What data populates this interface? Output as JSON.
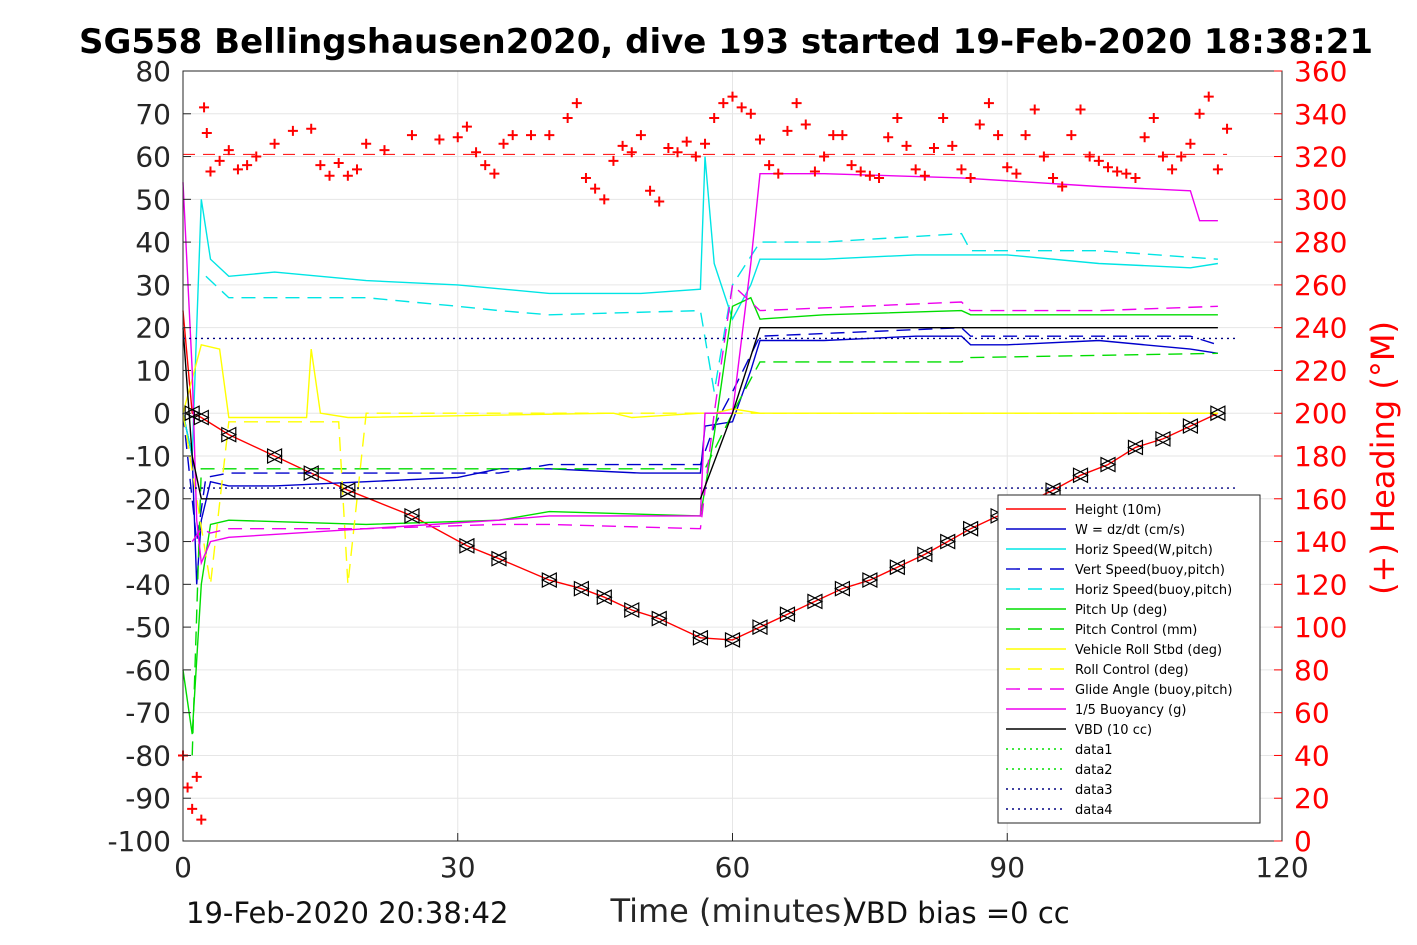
{
  "footer": {
    "timestamp": "19-Feb-2020 20:38:42",
    "vbd_bias": "VBD bias =0 cc"
  },
  "chart_data": {
    "type": "line",
    "title": "SG558 Bellingshausen2020, dive 193 started 19-Feb-2020 18:38:21",
    "xlabel": "Time (minutes)",
    "ylabel": "",
    "ylabel_right": "(+) Heading (°M)",
    "xlim": [
      0,
      120
    ],
    "ylim": [
      -100,
      80
    ],
    "ylim_right": [
      0,
      360
    ],
    "xticks": [
      "0",
      "30",
      "60",
      "90",
      "120"
    ],
    "yticks": [
      "80",
      "70",
      "60",
      "50",
      "40",
      "30",
      "20",
      "10",
      "0",
      "-10",
      "-20",
      "-30",
      "-40",
      "-50",
      "-60",
      "-70",
      "-80",
      "-90",
      "-100"
    ],
    "yticks_right": [
      "360",
      "340",
      "320",
      "300",
      "280",
      "260",
      "240",
      "220",
      "200",
      "180",
      "160",
      "140",
      "120",
      "100",
      "80",
      "60",
      "40",
      "20",
      "0"
    ],
    "grid": true,
    "legend_position": "bottom-right",
    "series": [
      {
        "name": "Height (10m)",
        "color": "#ff0000",
        "style": "solid",
        "x": [
          0,
          1,
          2,
          5,
          10,
          14,
          18,
          25,
          31,
          34.5,
          40,
          43.5,
          46,
          49,
          52,
          56.5,
          60,
          63,
          66,
          69,
          72,
          75,
          78,
          81,
          83.5,
          86,
          89,
          92,
          95,
          98,
          101,
          104,
          107,
          110,
          113
        ],
        "values": [
          24,
          0,
          -1,
          -5,
          -10,
          -14,
          -18,
          -24,
          -31,
          -34,
          -39,
          -41,
          -43,
          -46,
          -48,
          -52.5,
          -53,
          -50,
          -47,
          -44,
          -41,
          -39,
          -36,
          -33,
          -30,
          -27,
          -24,
          -21,
          -18,
          -14.5,
          -12,
          -8,
          -6,
          -3,
          0
        ]
      },
      {
        "name": "W = dz/dt (cm/s)",
        "color": "#0000cc",
        "style": "solid",
        "x": [
          0,
          1,
          1.5,
          2,
          3,
          5,
          10,
          20,
          30,
          34.5,
          40,
          50,
          56.5,
          57,
          60,
          62,
          63,
          70,
          80,
          85,
          86,
          90,
          100,
          110,
          113
        ],
        "values": [
          0,
          -10,
          -40,
          -25,
          -16,
          -17,
          -17,
          -16,
          -15,
          -13,
          -13,
          -14,
          -14,
          -3,
          -2,
          10,
          17,
          17,
          18,
          18,
          16,
          16,
          17,
          15,
          14
        ]
      },
      {
        "name": "Horiz Speed(W,pitch)",
        "color": "#00e5e5",
        "style": "solid",
        "x": [
          0,
          1,
          1.5,
          2,
          3,
          5,
          10,
          20,
          30,
          40,
          50,
          56.5,
          57,
          58,
          60,
          62,
          63,
          70,
          80,
          90,
          100,
          110,
          113
        ],
        "values": [
          0,
          -10,
          20,
          50,
          36,
          32,
          33,
          31,
          30,
          28,
          28,
          29,
          60,
          35,
          22,
          30,
          36,
          36,
          37,
          37,
          35,
          34,
          35
        ]
      },
      {
        "name": "Vert Speed(buoy,pitch)",
        "color": "#0000cc",
        "style": "dashed",
        "x": [
          0,
          1.5,
          2.5,
          5,
          20,
          34.5,
          40,
          56.5,
          58,
          60,
          63,
          85,
          86,
          110,
          113
        ],
        "values": [
          0,
          -30,
          -15,
          -14,
          -14,
          -14,
          -12,
          -12,
          -3,
          5,
          18,
          20,
          18,
          18,
          16
        ]
      },
      {
        "name": "Horiz Speed(buoy,pitch)",
        "color": "#00e5e5",
        "style": "dashed",
        "x": [
          2.5,
          5,
          20,
          30,
          34.5,
          40,
          56.5,
          58,
          60,
          63,
          70,
          85,
          86,
          100,
          113
        ],
        "values": [
          32,
          27,
          27,
          25,
          24,
          23,
          24,
          5,
          30,
          40,
          40,
          42,
          38,
          38,
          36
        ]
      },
      {
        "name": "Pitch Up (deg)",
        "color": "#00dd00",
        "style": "solid",
        "x": [
          0,
          1,
          2,
          3,
          5,
          20,
          34.5,
          40,
          56.5,
          58,
          60,
          62,
          63,
          70,
          85,
          86,
          113
        ],
        "values": [
          -60,
          -75,
          -40,
          -26,
          -25,
          -26,
          -25,
          -23,
          -24,
          -5,
          25,
          27,
          22,
          23,
          24,
          23,
          23
        ]
      },
      {
        "name": "Pitch Control (mm)",
        "color": "#00dd00",
        "style": "dashed",
        "x": [
          1,
          2,
          5,
          34.5,
          35,
          56.5,
          57,
          60,
          63,
          85,
          86,
          113
        ],
        "values": [
          -80,
          -13,
          -13,
          -13,
          -13,
          -13,
          -13,
          0,
          12,
          12,
          13,
          14
        ]
      },
      {
        "name": "Vehicle Roll Stbd (deg)",
        "color": "#ffff00",
        "style": "solid",
        "x": [
          0,
          2,
          4,
          5,
          13.5,
          14,
          15,
          18,
          19,
          47,
          49,
          56.5,
          58,
          60,
          63,
          113
        ],
        "values": [
          0,
          16,
          15,
          -1,
          -1,
          15,
          0,
          -1,
          -1,
          0,
          -1,
          0,
          0,
          1,
          0,
          0
        ]
      },
      {
        "name": "Roll Control (deg)",
        "color": "#ffff00",
        "style": "dashed",
        "x": [
          0,
          3,
          5,
          17,
          18,
          20,
          113
        ],
        "values": [
          0,
          -40,
          -2,
          -2,
          -40,
          0,
          0
        ]
      },
      {
        "name": "Glide Angle (buoy,pitch)",
        "color": "#ee00ee",
        "style": "dashed",
        "x": [
          1,
          2,
          3,
          5,
          20,
          34.5,
          40,
          56.5,
          58,
          60,
          63,
          85,
          86,
          100,
          113
        ],
        "values": [
          -30,
          -27,
          -28,
          -27,
          -27,
          -26,
          -26,
          -27,
          0,
          30,
          24,
          26,
          24,
          24,
          25
        ]
      },
      {
        "name": "1/5 Buoyancy (g)",
        "color": "#ee00ee",
        "style": "solid",
        "x": [
          0,
          1,
          1.5,
          2,
          3,
          5,
          20,
          34.5,
          40,
          56.5,
          57,
          60,
          62,
          63,
          70,
          85,
          100,
          110,
          111,
          113
        ],
        "values": [
          54,
          10,
          -25,
          -35,
          -30,
          -29,
          -27,
          -25,
          -24,
          -24,
          0,
          0,
          35,
          56,
          56,
          55,
          53,
          52,
          45,
          45
        ]
      },
      {
        "name": "VBD (10 cc)",
        "color": "#000000",
        "style": "solid",
        "x": [
          0,
          1,
          2,
          3,
          5,
          20,
          56.5,
          60,
          63,
          80,
          113
        ],
        "values": [
          20,
          -10,
          -20,
          -20,
          -20,
          -20,
          -20,
          0,
          20,
          20,
          20
        ]
      },
      {
        "name": "data1",
        "color": "#00dd00",
        "style": "dotted",
        "x": [],
        "values": []
      },
      {
        "name": "data2",
        "color": "#00dd00",
        "style": "dotted",
        "x": [],
        "values": []
      },
      {
        "name": "data3",
        "color": "#000080",
        "style": "dotted",
        "x": [
          0,
          115
        ],
        "values": [
          -17.5,
          -17.5
        ]
      },
      {
        "name": "data4",
        "color": "#000080",
        "style": "dotted",
        "x": [
          0,
          115
        ],
        "values": [
          17.5,
          17.5
        ]
      }
    ],
    "heading_series": {
      "name": "(+) Heading (°M)",
      "color": "#ff0000",
      "marker": "+",
      "mean": 321,
      "x": [
        0,
        0.5,
        1,
        1.5,
        2,
        2.3,
        2.6,
        3,
        4,
        5,
        6,
        7,
        8,
        10,
        12,
        14,
        15,
        16,
        17,
        18,
        19,
        20,
        22,
        25,
        28,
        30,
        31,
        32,
        33,
        34,
        35,
        36,
        38,
        40,
        42,
        43,
        44,
        45,
        46,
        47,
        48,
        49,
        50,
        51,
        52,
        53,
        54,
        55,
        56,
        57,
        58,
        59,
        60,
        61,
        62,
        63,
        64,
        65,
        66,
        67,
        68,
        69,
        70,
        71,
        72,
        73,
        74,
        75,
        76,
        77,
        78,
        79,
        80,
        81,
        82,
        83,
        84,
        85,
        86,
        87,
        88,
        89,
        90,
        91,
        92,
        93,
        94,
        95,
        96,
        97,
        98,
        99,
        100,
        101,
        102,
        103,
        104,
        105,
        106,
        107,
        108,
        109,
        110,
        111,
        112,
        113,
        114
      ],
      "values": [
        40,
        25,
        15,
        30,
        10,
        343,
        331,
        313,
        318,
        323,
        314,
        316,
        320,
        326,
        332,
        333,
        316,
        311,
        317,
        311,
        314,
        326,
        323,
        330,
        328,
        329,
        334,
        322,
        316,
        312,
        326,
        330,
        330,
        330,
        338,
        345,
        310,
        305,
        300,
        318,
        325,
        322,
        330,
        304,
        299,
        324,
        322,
        327,
        320,
        326,
        338,
        345,
        348,
        343,
        340,
        328,
        316,
        312,
        332,
        345,
        335,
        313,
        320,
        330,
        330,
        316,
        313,
        311,
        310,
        329,
        338,
        325,
        314,
        311,
        324,
        338,
        325,
        314,
        310,
        335,
        345,
        330,
        315,
        312,
        330,
        342,
        320,
        310,
        306,
        330,
        342,
        320,
        318,
        315,
        313,
        312,
        310,
        329,
        338,
        320,
        314,
        320,
        326,
        340,
        348,
        314,
        333
      ]
    }
  }
}
